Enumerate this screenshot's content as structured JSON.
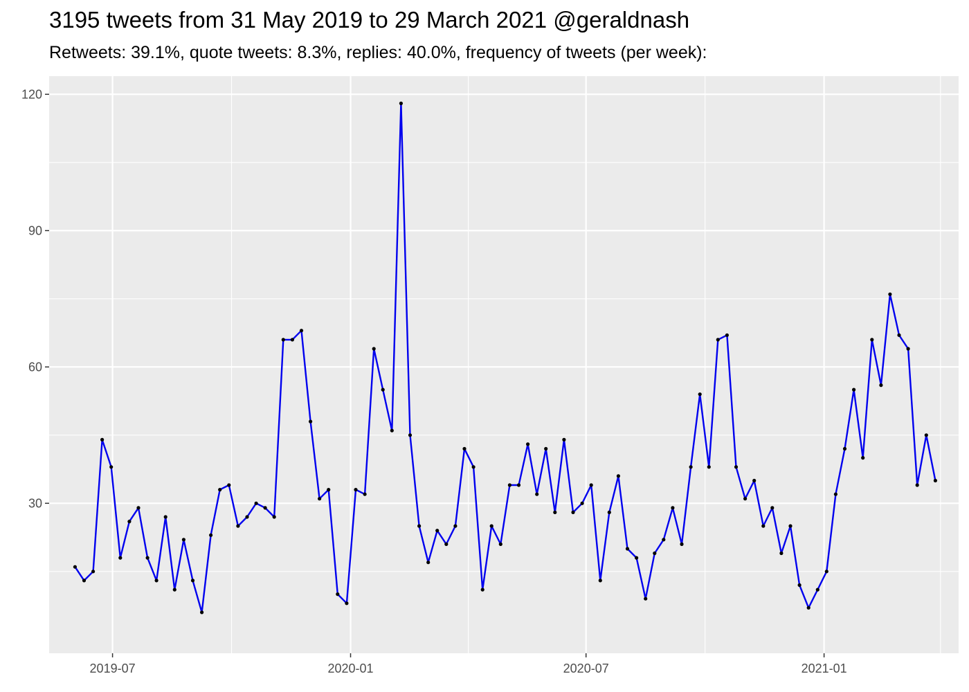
{
  "chart_data": {
    "type": "line",
    "title": "3195 tweets from 31 May 2019 to 29 March 2021 @geraldnash",
    "subtitle": "Retweets: 39.1%, quote tweets: 8.3%, replies: 40.0%, frequency of tweets (per week):",
    "xlabel": "",
    "ylabel": "",
    "x_axis": {
      "type": "date",
      "range": [
        "2019-05-13",
        "2021-04-15"
      ],
      "ticks": [
        "2019-07-01",
        "2020-01-01",
        "2020-07-01",
        "2021-01-01"
      ],
      "tick_labels": [
        "2019-07",
        "2020-01",
        "2020-07",
        "2021-01"
      ],
      "minor_ticks": [
        "2019-04-01",
        "2019-10-01",
        "2020-04-01",
        "2020-10-01",
        "2021-04-01"
      ]
    },
    "y_axis": {
      "range": [
        -3,
        124
      ],
      "ticks": [
        30,
        60,
        90,
        120
      ],
      "tick_labels": [
        "30",
        "60",
        "90",
        "120"
      ],
      "minor_ticks": [
        15,
        45,
        75,
        105
      ]
    },
    "grid": true,
    "colors": {
      "line": "#0000ee",
      "point": "#000000",
      "panel": "#ebebeb",
      "grid": "#ffffff"
    },
    "series": [
      {
        "x": [
          "2019-06-02",
          "2019-06-09",
          "2019-06-16",
          "2019-06-23",
          "2019-06-30",
          "2019-07-07",
          "2019-07-14",
          "2019-07-21",
          "2019-07-28",
          "2019-08-04",
          "2019-08-11",
          "2019-08-18",
          "2019-08-25",
          "2019-09-01",
          "2019-09-08",
          "2019-09-15",
          "2019-09-22",
          "2019-09-29",
          "2019-10-06",
          "2019-10-13",
          "2019-10-20",
          "2019-10-27",
          "2019-11-03",
          "2019-11-10",
          "2019-11-17",
          "2019-11-24",
          "2019-12-01",
          "2019-12-08",
          "2019-12-15",
          "2019-12-22",
          "2019-12-29",
          "2020-01-05",
          "2020-01-12",
          "2020-01-19",
          "2020-01-26",
          "2020-02-02",
          "2020-02-09",
          "2020-02-16",
          "2020-02-23",
          "2020-03-01",
          "2020-03-08",
          "2020-03-15",
          "2020-03-22",
          "2020-03-29",
          "2020-04-05",
          "2020-04-12",
          "2020-04-19",
          "2020-04-26",
          "2020-05-03",
          "2020-05-10",
          "2020-05-17",
          "2020-05-24",
          "2020-05-31",
          "2020-06-07",
          "2020-06-14",
          "2020-06-21",
          "2020-06-28",
          "2020-07-05",
          "2020-07-12",
          "2020-07-19",
          "2020-07-26",
          "2020-08-02",
          "2020-08-09",
          "2020-08-16",
          "2020-08-23",
          "2020-08-30",
          "2020-09-06",
          "2020-09-13",
          "2020-09-20",
          "2020-09-27",
          "2020-10-04",
          "2020-10-11",
          "2020-10-18",
          "2020-10-25",
          "2020-11-01",
          "2020-11-08",
          "2020-11-15",
          "2020-11-22",
          "2020-11-29",
          "2020-12-06",
          "2020-12-13",
          "2020-12-20",
          "2020-12-27",
          "2021-01-03",
          "2021-01-10",
          "2021-01-17",
          "2021-01-24",
          "2021-01-31",
          "2021-02-07",
          "2021-02-14",
          "2021-02-21",
          "2021-02-28",
          "2021-03-07",
          "2021-03-14",
          "2021-03-21",
          "2021-03-28"
        ],
        "values": [
          16,
          13,
          15,
          44,
          38,
          18,
          26,
          29,
          18,
          13,
          27,
          11,
          22,
          13,
          6,
          23,
          33,
          34,
          25,
          27,
          30,
          29,
          27,
          66,
          66,
          68,
          48,
          31,
          33,
          10,
          8,
          33,
          32,
          64,
          55,
          46,
          118,
          45,
          25,
          17,
          24,
          21,
          25,
          42,
          38,
          11,
          25,
          21,
          34,
          34,
          43,
          32,
          42,
          28,
          44,
          28,
          30,
          34,
          13,
          28,
          36,
          20,
          18,
          9,
          19,
          22,
          29,
          21,
          38,
          54,
          38,
          66,
          67,
          38,
          31,
          35,
          25,
          29,
          19,
          25,
          12,
          7,
          11,
          15,
          32,
          42,
          55,
          40,
          66,
          56,
          76,
          67,
          64,
          34,
          45,
          35
        ]
      }
    ]
  }
}
